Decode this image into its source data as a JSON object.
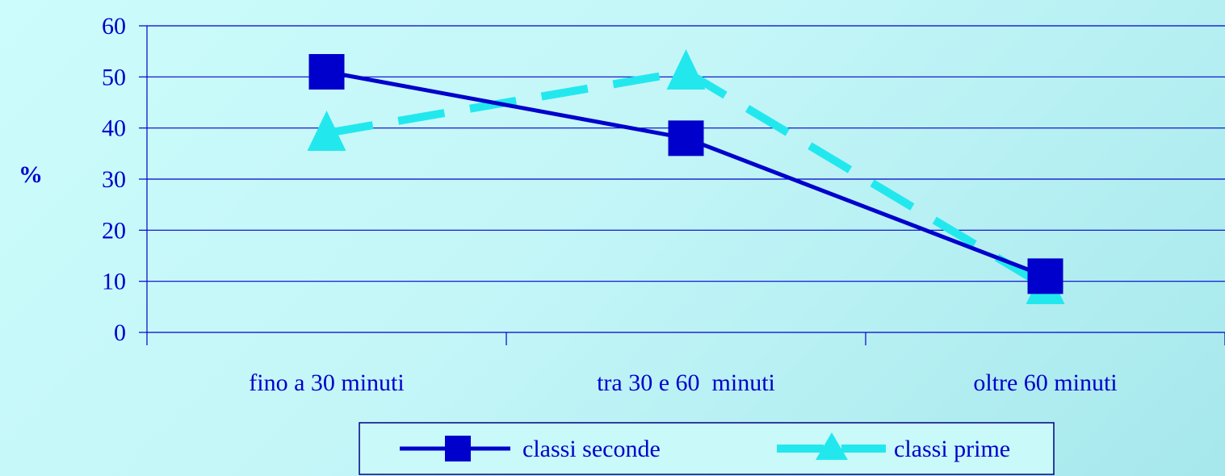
{
  "chart_data": {
    "type": "line",
    "categories": [
      "fino a 30 minuti",
      "tra 30 e 60  minuti",
      "oltre 60 minuti"
    ],
    "series": [
      {
        "name": "classi seconde",
        "values": [
          51,
          38,
          11
        ],
        "color": "#0000cc",
        "marker": "square",
        "line": "solid"
      },
      {
        "name": "classi prime",
        "values": [
          39,
          51,
          9
        ],
        "color": "#22e8ee",
        "marker": "triangle",
        "line": "dashed"
      }
    ],
    "ylabel": "%",
    "ylim": [
      0,
      60
    ],
    "yticks": [
      0,
      10,
      20,
      30,
      40,
      50,
      60
    ],
    "grid": true,
    "legend": "bottom"
  }
}
